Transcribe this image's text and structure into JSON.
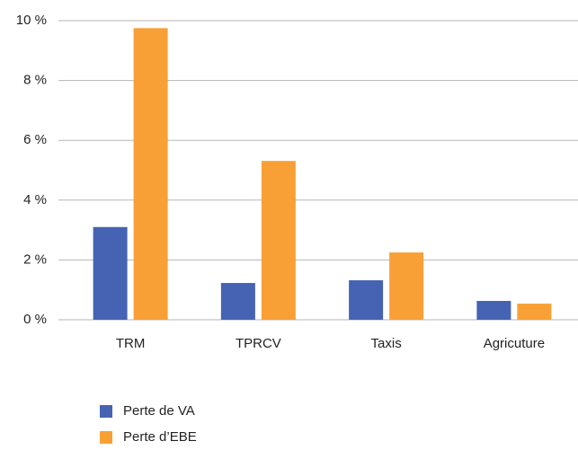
{
  "chart_data": {
    "type": "bar",
    "categories": [
      "TRM",
      "TPRCV",
      "Taxis",
      "Agricuture"
    ],
    "series": [
      {
        "name": "Perte de VA",
        "color": "#4563b2",
        "values": [
          3.1,
          1.23,
          1.32,
          0.63
        ]
      },
      {
        "name": "Perte d’EBE",
        "color": "#f8a035",
        "values": [
          9.75,
          5.31,
          2.25,
          0.54
        ]
      }
    ],
    "ylim": [
      0,
      10
    ],
    "yticks": [
      {
        "value": 0,
        "label": "0 %"
      },
      {
        "value": 2,
        "label": "2 %"
      },
      {
        "value": 4,
        "label": "4 %"
      },
      {
        "value": 6,
        "label": "6 %"
      },
      {
        "value": 8,
        "label": "8 %"
      },
      {
        "value": 10,
        "label": "10 %"
      }
    ],
    "grid": true,
    "legend": "bottom"
  }
}
